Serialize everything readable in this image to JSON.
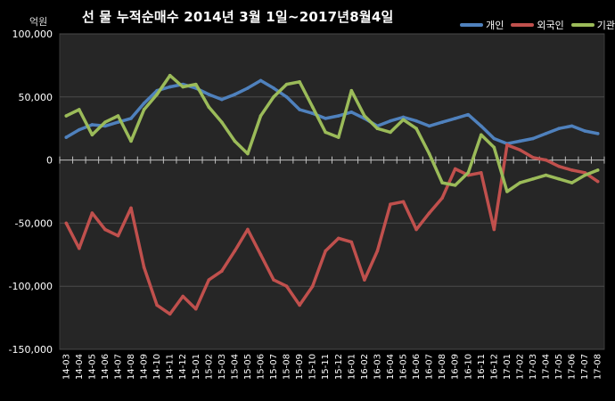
{
  "chart_data": {
    "type": "line",
    "title": "선 물 누적순매수 2014년 3월 1일~2017년8월4일",
    "unit_label": "억원",
    "ylim": [
      -150000,
      100000
    ],
    "y_ticks": [
      "100,000",
      "50,000",
      "0",
      "-50,000",
      "-100,000",
      "-150,000"
    ],
    "y_tick_values": [
      100000,
      50000,
      0,
      -50000,
      -100000,
      -150000
    ],
    "grid": true,
    "legend_position": "top-right",
    "categories": [
      "14-03",
      "14-04",
      "14-05",
      "14-06",
      "14-07",
      "14-08",
      "14-09",
      "14-10",
      "14-11",
      "14-12",
      "15-01",
      "15-02",
      "15-03",
      "15-04",
      "15-05",
      "15-06",
      "15-07",
      "15-08",
      "15-09",
      "15-10",
      "15-11",
      "15-12",
      "16-01",
      "16-02",
      "16-03",
      "16-04",
      "16-05",
      "16-06",
      "16-07",
      "16-08",
      "16-09",
      "16-10",
      "16-11",
      "16-12",
      "17-01",
      "17-02",
      "17-03",
      "17-04",
      "17-05",
      "17-06",
      "17-07",
      "17-08"
    ],
    "series": [
      {
        "name": "개인",
        "color": "#4f81bd",
        "values": [
          18000,
          24000,
          28000,
          27000,
          30000,
          33000,
          45000,
          55000,
          58000,
          60000,
          57000,
          52000,
          48000,
          52000,
          57000,
          63000,
          57000,
          50000,
          40000,
          37000,
          33000,
          35000,
          38000,
          33000,
          27000,
          31000,
          34000,
          31000,
          27000,
          30000,
          33000,
          36000,
          27000,
          17000,
          13000,
          15000,
          17000,
          21000,
          25000,
          27000,
          23000,
          21000
        ]
      },
      {
        "name": "외국인",
        "color": "#c0504d",
        "values": [
          -50000,
          -70000,
          -42000,
          -55000,
          -60000,
          -38000,
          -85000,
          -115000,
          -122000,
          -108000,
          -118000,
          -95000,
          -88000,
          -72000,
          -55000,
          -75000,
          -95000,
          -100000,
          -115000,
          -100000,
          -72000,
          -62000,
          -65000,
          -95000,
          -72000,
          -35000,
          -33000,
          -55000,
          -42000,
          -30000,
          -7000,
          -12000,
          -10000,
          -55000,
          12000,
          8000,
          2000,
          0,
          -5000,
          -8000,
          -10000,
          -17000
        ]
      },
      {
        "name": "기관",
        "color": "#9bbb59",
        "values": [
          35000,
          40000,
          20000,
          30000,
          35000,
          15000,
          40000,
          52000,
          67000,
          58000,
          60000,
          42000,
          30000,
          15000,
          5000,
          35000,
          50000,
          60000,
          62000,
          42000,
          22000,
          18000,
          55000,
          35000,
          25000,
          22000,
          32000,
          25000,
          5000,
          -18000,
          -20000,
          -10000,
          20000,
          10000,
          -25000,
          -18000,
          -15000,
          -12000,
          -15000,
          -18000,
          -12000,
          -8000
        ]
      }
    ]
  }
}
